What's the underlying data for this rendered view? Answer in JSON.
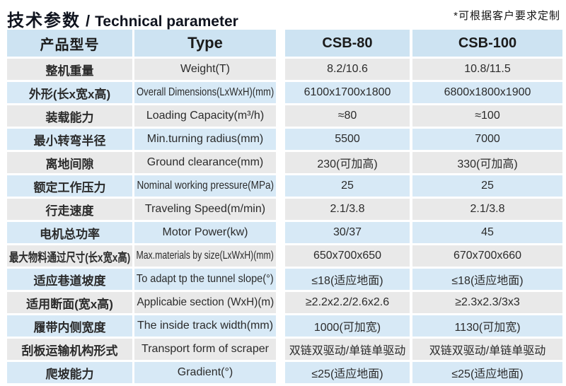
{
  "title": {
    "zh": "技术参数",
    "sep": "/",
    "en": "Technical parameter"
  },
  "note": "*可根据客户要求定制",
  "colors": {
    "header_row_bg": "#cde3f2",
    "blue_row_bg": "#d7e9f6",
    "gray_row_bg": "#e9e9e9",
    "title_text": "#10141f",
    "cell_text": "#2b2b2b"
  },
  "table": {
    "headers": {
      "col1": "产品型号",
      "col2": "Type",
      "col3": "CSB-80",
      "col4": "CSB-100"
    },
    "rows": [
      {
        "zh": "整机重量",
        "en": "Weight(T)",
        "csb80": "8.2/10.6",
        "csb100": "10.8/11.5"
      },
      {
        "zh": "外形(长x宽x高)",
        "en": "Overall Dimensions(LxWxH)(mm)",
        "csb80": "6100x1700x1800",
        "csb100": "6800x1800x1900"
      },
      {
        "zh": "装载能力",
        "en": "Loading Capacity(m³/h)",
        "csb80": "≈80",
        "csb100": "≈100"
      },
      {
        "zh": "最小转弯半径",
        "en": "Min.turning radius(mm)",
        "csb80": "5500",
        "csb100": "7000"
      },
      {
        "zh": "离地间隙",
        "en": "Ground clearance(mm)",
        "csb80": "230(可加高)",
        "csb100": "330(可加高)"
      },
      {
        "zh": "额定工作压力",
        "en": "Nominal working pressure(MPa)",
        "csb80": "25",
        "csb100": "25"
      },
      {
        "zh": "行走速度",
        "en": "Traveling Speed(m/min)",
        "csb80": "2.1/3.8",
        "csb100": "2.1/3.8"
      },
      {
        "zh": "电机总功率",
        "en": "Motor Power(kw)",
        "csb80": "30/37",
        "csb100": "45"
      },
      {
        "zh": "最大物料通过尺寸(长x宽x高)",
        "en": "Max.materials by size(LxWxH)(mm)",
        "csb80": "650x700x650",
        "csb100": "670x700x660"
      },
      {
        "zh": "适应巷道坡度",
        "en": "To adapt tp the tunnel slope(°)",
        "csb80": "≤18(适应地面)",
        "csb100": "≤18(适应地面)"
      },
      {
        "zh": "适用断面(宽x高)",
        "en": "Applicabie section (WxH)(m)",
        "csb80": "≥2.2x2.2/2.6x2.6",
        "csb100": "≥2.3x2.3/3x3"
      },
      {
        "zh": "履带内侧宽度",
        "en": "The inside track width(mm)",
        "csb80": "1000(可加宽)",
        "csb100": "1130(可加宽)"
      },
      {
        "zh": "刮板运输机构形式",
        "en": "Transport form of scraper",
        "csb80": "双链双驱动/单链单驱动",
        "csb100": "双链双驱动/单链单驱动"
      },
      {
        "zh": "爬坡能力",
        "en": "Gradient(°)",
        "csb80": "≤25(适应地面)",
        "csb100": "≤25(适应地面)"
      }
    ]
  }
}
